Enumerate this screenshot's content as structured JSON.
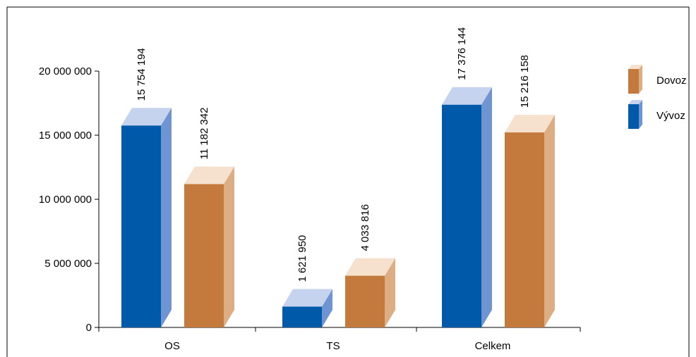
{
  "chart_data": {
    "type": "bar",
    "categories": [
      "OS",
      "TS",
      "Celkem"
    ],
    "series": [
      {
        "name": "Výv​oz",
        "values": [
          15754194,
          1621950,
          17376144
        ],
        "value_labels": [
          "15 754 194",
          "1 621 950",
          "17 376 144"
        ]
      },
      {
        "name": "Dovoz",
        "values": [
          11182342,
          4033816,
          15216158
        ],
        "value_labels": [
          "11 182 342",
          "4 033 816",
          "15 216 158"
        ]
      }
    ],
    "ylim": [
      0,
      20000000
    ],
    "y_ticks": [
      {
        "value": 0,
        "label": "0"
      },
      {
        "value": 5000000,
        "label": "5 000 000"
      },
      {
        "value": 10000000,
        "label": "10 000 000"
      },
      {
        "value": 15000000,
        "label": "15 000 000"
      },
      {
        "value": 20000000,
        "label": "20 000 000"
      }
    ],
    "legend": {
      "placement": "right",
      "order": [
        "Dovoz",
        "Výv​oz"
      ]
    },
    "colors": {
      "Výv​oz": {
        "front": "#005aa9",
        "top": "#c5d3ee",
        "side": "#6e95d2"
      },
      "Dovoz": {
        "front": "#c47a3d",
        "top": "#f5e1cd",
        "side": "#ddae83"
      }
    },
    "grid": false,
    "style": "3d"
  }
}
